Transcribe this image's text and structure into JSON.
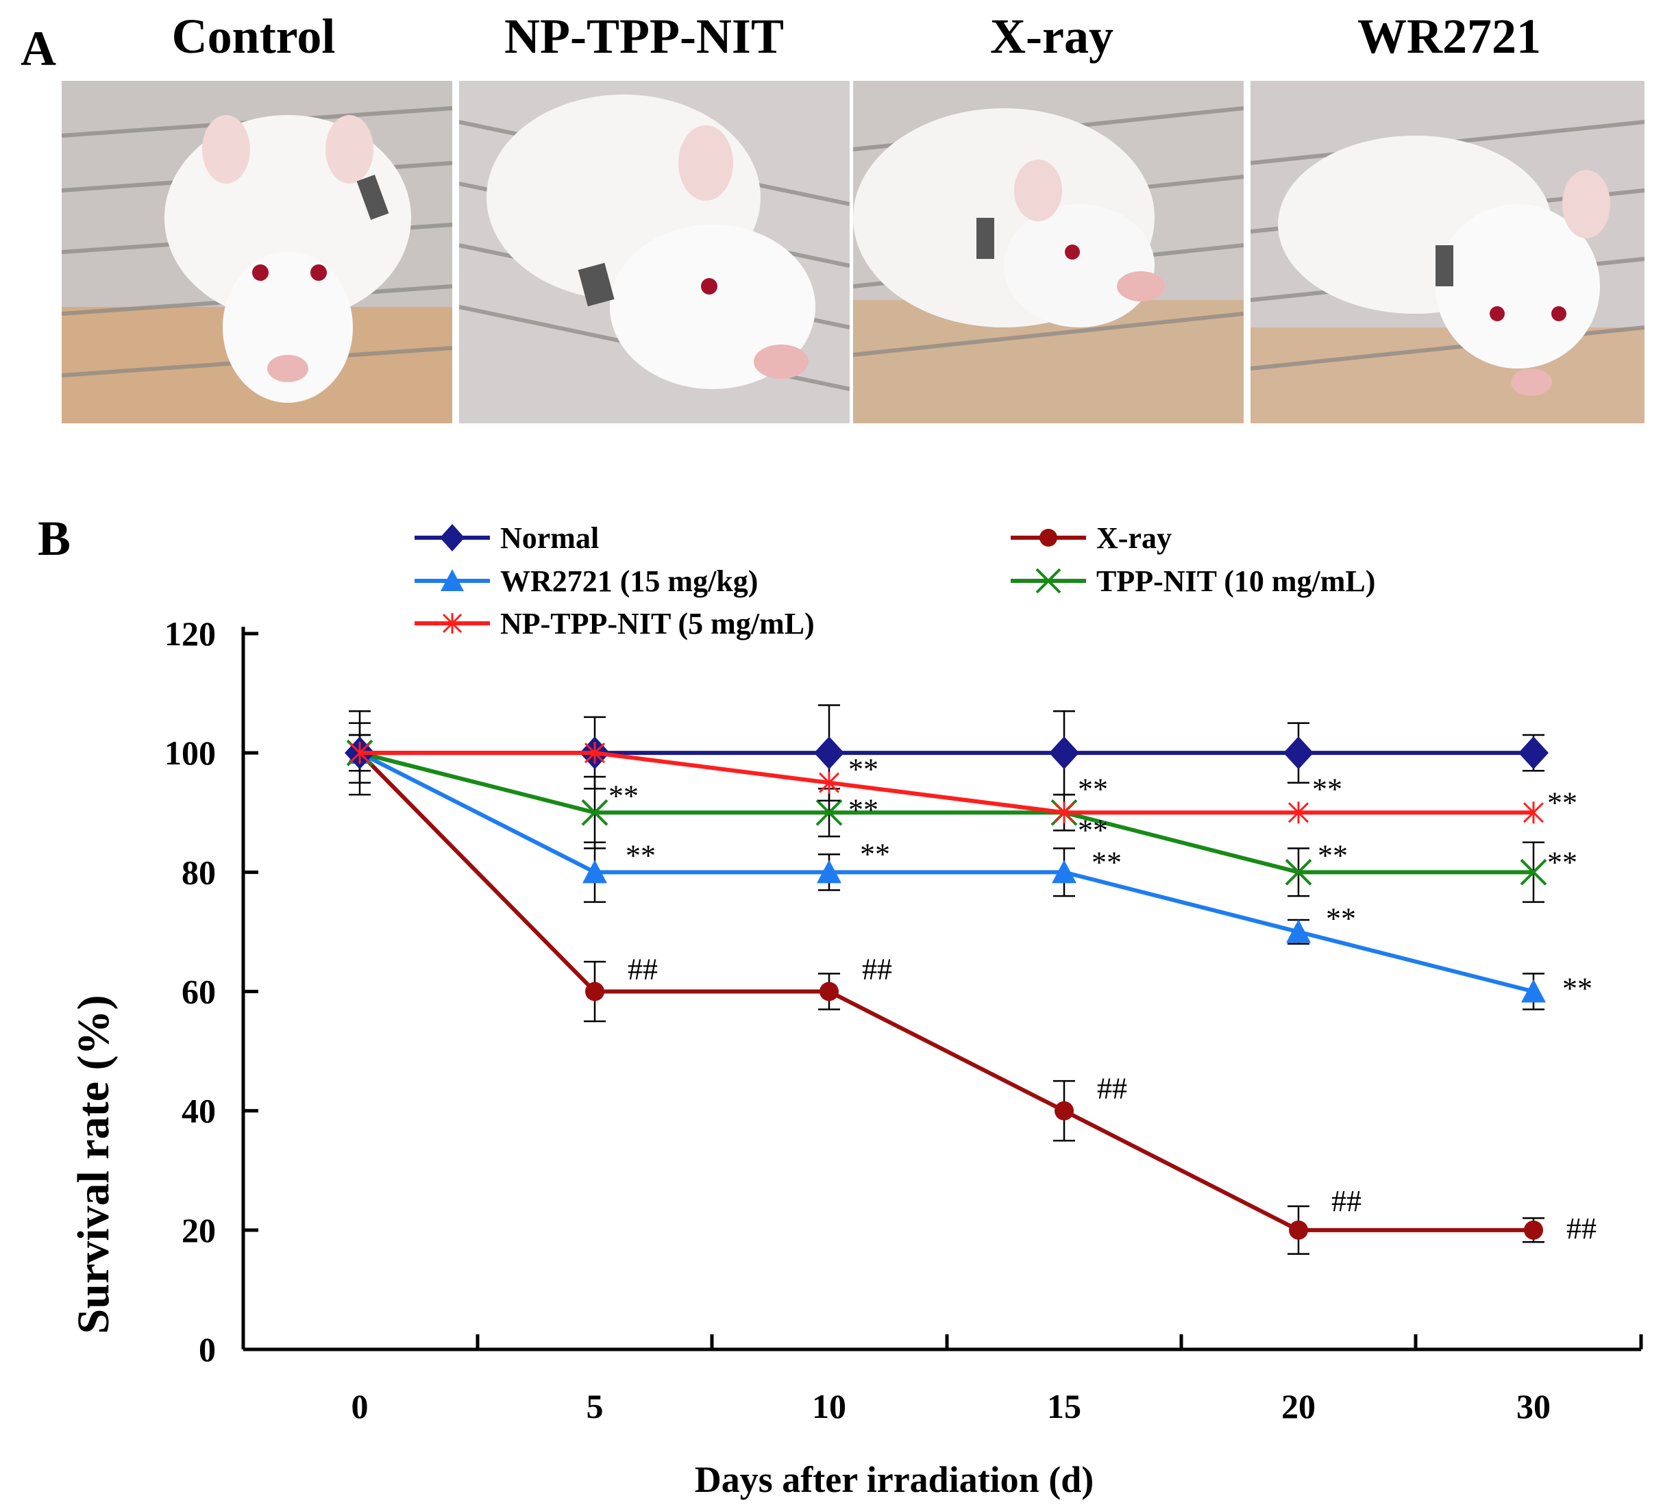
{
  "panel_a": {
    "label": "A",
    "photos": [
      {
        "title": "Control"
      },
      {
        "title": "NP-TPP-NIT"
      },
      {
        "title": "X-ray"
      },
      {
        "title": "WR2721"
      }
    ]
  },
  "panel_b": {
    "label": "B"
  },
  "colors": {
    "Normal": "#1a1a8c",
    "X-ray": "#9b0d0d",
    "WR2721 (15 mg/kg)": "#1e7cf0",
    "TPP-NIT (10 mg/mL)": "#188a18",
    "NP-TPP-NIT (5 mg/mL)": "#ff1e1e"
  },
  "chart_data": {
    "type": "line",
    "title": "",
    "xlabel": "Days after irradiation (d)",
    "ylabel": "Survival rate (%)",
    "categories": [
      "0",
      "5",
      "10",
      "15",
      "20",
      "30"
    ],
    "ylim": [
      0,
      120
    ],
    "yticks": [
      "0",
      "20",
      "40",
      "60",
      "80",
      "100",
      "120"
    ],
    "series": [
      {
        "name": "Normal",
        "marker": "diamond",
        "values": [
          100,
          100,
          100,
          100,
          100,
          100
        ],
        "errors": [
          7,
          6,
          8,
          7,
          5,
          3
        ]
      },
      {
        "name": "X-ray",
        "marker": "circle",
        "values": [
          100,
          60,
          60,
          40,
          20,
          20
        ],
        "errors": [
          3,
          5,
          3,
          5,
          4,
          2
        ],
        "annotations": [
          "",
          "##",
          "##",
          "##",
          "##",
          "##"
        ]
      },
      {
        "name": "WR2721 (15 mg/kg)",
        "marker": "triangle",
        "values": [
          100,
          80,
          80,
          80,
          70,
          60
        ],
        "errors": [
          3,
          5,
          3,
          4,
          2,
          3
        ],
        "annotations": [
          "",
          "**",
          "**",
          "**",
          "**",
          "**"
        ]
      },
      {
        "name": "TPP-NIT (10 mg/mL)",
        "marker": "x",
        "values": [
          100,
          90,
          90,
          90,
          80,
          80
        ],
        "errors": [
          5,
          6,
          4,
          3,
          4,
          5
        ],
        "annotations": [
          "",
          "**",
          "**",
          "**",
          "**",
          "**"
        ]
      },
      {
        "name": "NP-TPP-NIT (5 mg/mL)",
        "marker": "star",
        "values": [
          100,
          100,
          95,
          90,
          90,
          90
        ],
        "errors": [
          0,
          0,
          0,
          0,
          0,
          0
        ],
        "annotations": [
          "",
          "",
          "**",
          "**",
          "**",
          "**"
        ]
      }
    ]
  }
}
